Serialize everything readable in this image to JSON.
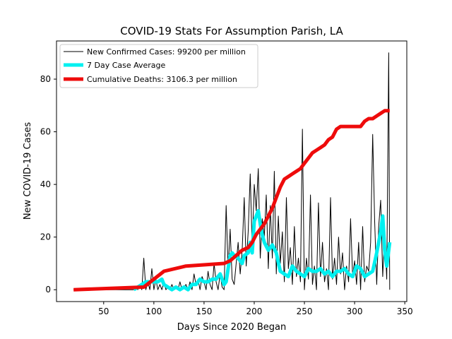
{
  "chart_data": {
    "type": "line",
    "title": "COVID-19 Stats For Assumption Parish, LA",
    "xlabel": "Days Since 2020 Began",
    "ylabel": "New COVID-19 Cases",
    "xlim": [
      3,
      352
    ],
    "ylim": [
      -4.5,
      94.5
    ],
    "xticks": [
      50,
      100,
      150,
      200,
      250,
      300,
      350
    ],
    "yticks": [
      0,
      20,
      40,
      60,
      80
    ],
    "grid": false,
    "legend_position": "upper-left",
    "series": [
      {
        "name": "New Confirmed Cases: 99200 per million",
        "color": "#000000",
        "line_width": 1,
        "x": [
          20,
          40,
          60,
          80,
          82,
          84,
          86,
          88,
          90,
          92,
          94,
          96,
          98,
          100,
          102,
          104,
          106,
          108,
          110,
          112,
          114,
          116,
          118,
          120,
          122,
          124,
          126,
          128,
          130,
          132,
          134,
          136,
          138,
          140,
          142,
          144,
          146,
          148,
          150,
          152,
          154,
          156,
          158,
          160,
          162,
          164,
          166,
          168,
          170,
          172,
          174,
          176,
          178,
          180,
          182,
          184,
          186,
          188,
          190,
          192,
          194,
          196,
          198,
          200,
          202,
          204,
          206,
          208,
          210,
          212,
          214,
          216,
          218,
          220,
          222,
          224,
          226,
          228,
          230,
          232,
          234,
          236,
          238,
          240,
          242,
          244,
          246,
          248,
          250,
          252,
          254,
          256,
          258,
          260,
          262,
          264,
          266,
          268,
          270,
          272,
          274,
          276,
          278,
          280,
          282,
          284,
          286,
          288,
          290,
          292,
          294,
          296,
          298,
          300,
          302,
          304,
          306,
          308,
          310,
          312,
          314,
          316,
          318,
          320,
          322,
          324,
          326,
          328,
          330,
          332,
          334,
          335
        ],
        "y": [
          0,
          0,
          0,
          0,
          1,
          0,
          2,
          0,
          12,
          0,
          3,
          0,
          8,
          0,
          4,
          0,
          2,
          0,
          3,
          0,
          1,
          0,
          2,
          0,
          1,
          0,
          3,
          0,
          1,
          2,
          0,
          3,
          0,
          6,
          2,
          4,
          0,
          5,
          3,
          0,
          7,
          2,
          0,
          10,
          3,
          0,
          6,
          1,
          0,
          32,
          8,
          23,
          4,
          2,
          10,
          18,
          6,
          15,
          35,
          9,
          22,
          44,
          16,
          40,
          30,
          46,
          12,
          27,
          20,
          36,
          8,
          32,
          12,
          45,
          6,
          28,
          10,
          22,
          3,
          35,
          8,
          16,
          2,
          24,
          5,
          12,
          3,
          61,
          0,
          12,
          4,
          36,
          2,
          9,
          0,
          33,
          5,
          18,
          3,
          8,
          0,
          35,
          4,
          12,
          2,
          20,
          6,
          14,
          0,
          9,
          3,
          27,
          5,
          11,
          2,
          18,
          0,
          24,
          3,
          9,
          7,
          18,
          59,
          26,
          2,
          24,
          34,
          5,
          22,
          4,
          90,
          0
        ]
      },
      {
        "name": "7 Day Case Average",
        "color": "#00f0f0",
        "line_width": 5,
        "x": [
          80,
          84,
          88,
          92,
          96,
          100,
          104,
          108,
          110,
          114,
          118,
          122,
          126,
          130,
          134,
          138,
          142,
          146,
          150,
          154,
          158,
          162,
          166,
          168,
          170,
          172,
          174,
          176,
          178,
          180,
          184,
          188,
          190,
          194,
          196,
          198,
          200,
          202,
          204,
          206,
          208,
          210,
          214,
          218,
          222,
          226,
          230,
          234,
          238,
          242,
          246,
          250,
          254,
          258,
          262,
          266,
          270,
          274,
          278,
          282,
          286,
          290,
          294,
          298,
          302,
          306,
          310,
          314,
          318,
          322,
          324,
          326,
          328,
          330,
          332,
          335
        ],
        "y": [
          0,
          1,
          2,
          3,
          3,
          3,
          3,
          4,
          2,
          1,
          0,
          1,
          0,
          1,
          0,
          2,
          2,
          4,
          3,
          3,
          4,
          4,
          6,
          4,
          2,
          3,
          8,
          13,
          14,
          13,
          12,
          10,
          13,
          14,
          18,
          14,
          26,
          28,
          30,
          25,
          21,
          18,
          15,
          17,
          14,
          7,
          6,
          5,
          9,
          7,
          6,
          5,
          8,
          7,
          7,
          8,
          6,
          7,
          5,
          7,
          7,
          8,
          6,
          5,
          9,
          8,
          5,
          6,
          7,
          14,
          18,
          22,
          28,
          15,
          9,
          18
        ]
      },
      {
        "name": "Cumulative Deaths: 3106.3 per million",
        "color": "#ee0b0b",
        "line_width": 5,
        "x": [
          20,
          90,
          110,
          132,
          170,
          176,
          182,
          188,
          194,
          198,
          202,
          206,
          210,
          214,
          218,
          222,
          226,
          230,
          234,
          238,
          242,
          246,
          250,
          254,
          258,
          262,
          266,
          270,
          274,
          278,
          282,
          286,
          290,
          294,
          298,
          302,
          306,
          310,
          314,
          318,
          322,
          326,
          330,
          335
        ],
        "y": [
          0,
          1,
          7,
          9,
          10,
          11,
          13,
          15,
          16,
          18,
          21,
          23,
          25,
          28,
          31,
          35,
          39,
          42,
          43,
          44,
          45,
          46,
          48,
          50,
          52,
          53,
          54,
          55,
          57,
          58,
          61,
          62,
          62,
          62,
          62,
          62,
          62,
          64,
          65,
          65,
          66,
          67,
          68,
          68
        ]
      }
    ]
  }
}
